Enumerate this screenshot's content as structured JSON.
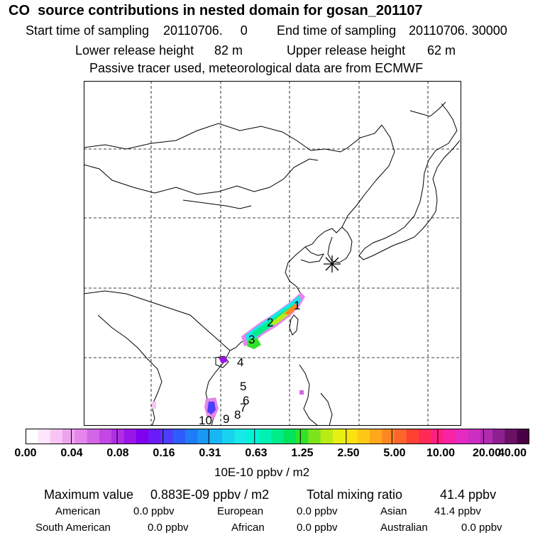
{
  "header": {
    "title": "CO  source contributions in nested domain for gosan_201107",
    "start_label": "Start time of sampling",
    "start_value": "20110706.     0",
    "end_label": "End time of sampling",
    "end_value": "20110706. 30000",
    "lower_label": "Lower release height",
    "lower_value": "82 m",
    "upper_label": "Upper release height",
    "upper_value": "62 m",
    "note": "Passive tracer used, meteorological data are from ECMWF"
  },
  "map": {
    "receptor_symbol": "asterisk",
    "track_labels": [
      "1",
      "2",
      "3",
      "4",
      "5",
      "6",
      "7",
      "8",
      "9",
      "10"
    ]
  },
  "colorbar": {
    "ticks": [
      "0.00",
      "0.04",
      "0.08",
      "0.16",
      "0.31",
      "0.63",
      "1.25",
      "2.50",
      "5.00",
      "10.00",
      "20.00",
      "40.00"
    ],
    "unit": "10E-10 ppbv / m2",
    "colors": [
      "#ffffff",
      "#fde6fb",
      "#f7c4f4",
      "#efa3ee",
      "#e486ea",
      "#d265e6",
      "#c247e4",
      "#b02de6",
      "#9a16e8",
      "#8000f0",
      "#6a1cf8",
      "#4d3dfd",
      "#2f5dfd",
      "#1f7cf9",
      "#1a99f5",
      "#18b6f2",
      "#19d2ef",
      "#17e8e8",
      "#00f5d7",
      "#00f2b3",
      "#00ec8a",
      "#00e35b",
      "#30e22a",
      "#7ce41c",
      "#b8ea16",
      "#e8ef13",
      "#fbe312",
      "#ffc816",
      "#ffa81b",
      "#ff8722",
      "#ff652a",
      "#ff4134",
      "#ff2a55",
      "#ff1f7f",
      "#fa23a6",
      "#e52ac1",
      "#cc2ec2",
      "#b12bb1",
      "#8e1f8f",
      "#6a1166",
      "#4a0045"
    ]
  },
  "stats": {
    "max_label": "Maximum value",
    "max_value": "0.883E-09 ppbv / m2",
    "total_label": "Total mixing ratio",
    "total_value": "41.4 ppbv",
    "regions": [
      {
        "name": "American",
        "value": "0.0 ppbv"
      },
      {
        "name": "European",
        "value": "0.0 ppbv"
      },
      {
        "name": "Asian",
        "value": "41.4 ppbv"
      },
      {
        "name": "South American",
        "value": "0.0 ppbv"
      },
      {
        "name": "African",
        "value": "0.0 ppbv"
      },
      {
        "name": "Australian",
        "value": "0.0 ppbv"
      }
    ]
  }
}
